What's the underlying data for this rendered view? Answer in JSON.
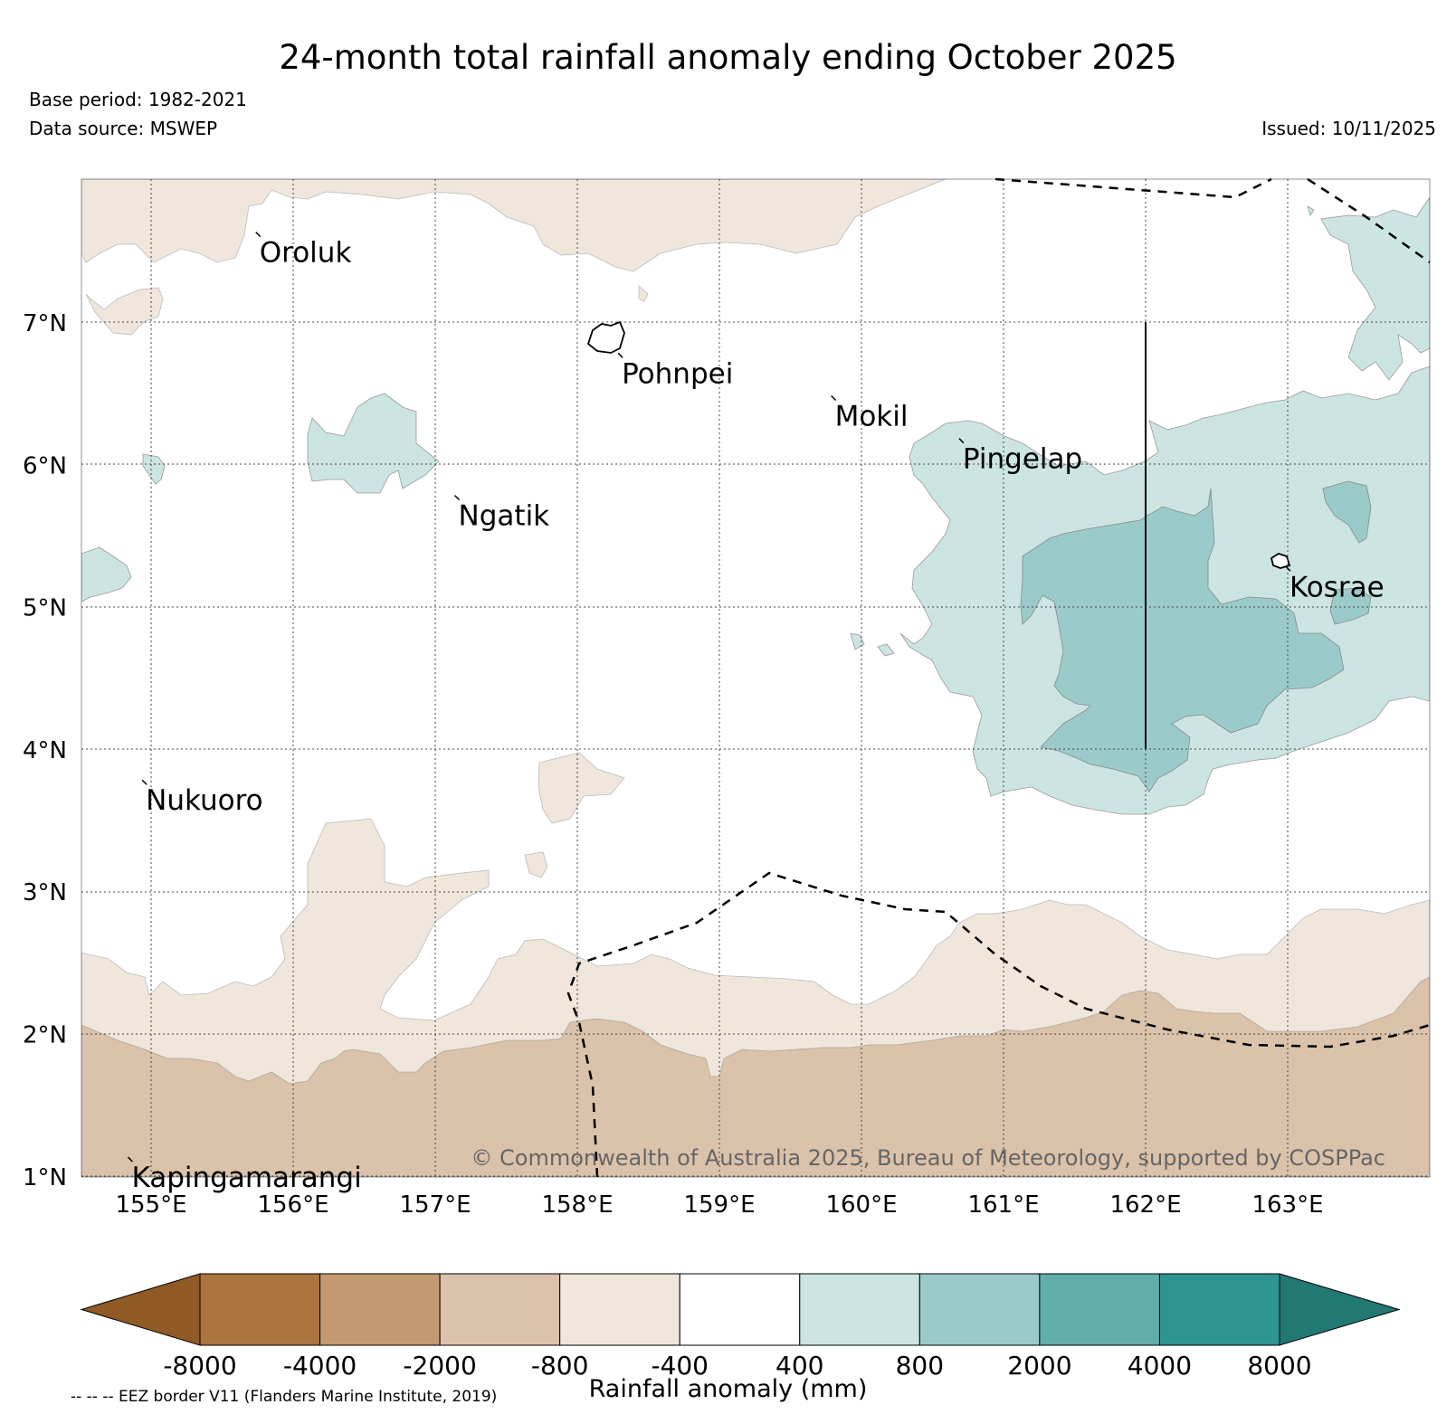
{
  "title": "24-month total rainfall anomaly ending October 2025",
  "base_period": "Base period: 1982-2021",
  "data_source": "Data source: MSWEP",
  "issued": "Issued: 10/11/2025",
  "copyright": "© Commonwealth of Australia 2025, Bureau of Meteorology, supported by COSPPac",
  "eez_note": "-- -- -- EEZ border V11 (Flanders Marine Institute, 2019)",
  "map": {
    "lon_range": [
      154.5,
      164.0
    ],
    "lat_range": [
      1.0,
      8.0
    ],
    "lat_ticks": [
      "7°N",
      "6°N",
      "5°N",
      "4°N",
      "3°N",
      "2°N",
      "1°N"
    ],
    "lon_ticks": [
      "155°E",
      "156°E",
      "157°E",
      "158°E",
      "159°E",
      "160°E",
      "161°E",
      "162°E",
      "163°E"
    ],
    "places": [
      {
        "name": "Oroluk",
        "lon": 155.75,
        "lat": 7.6
      },
      {
        "name": "Pohnpei",
        "lon": 158.3,
        "lat": 6.75
      },
      {
        "name": "Mokil",
        "lon": 159.8,
        "lat": 6.45
      },
      {
        "name": "Pingelap",
        "lon": 160.7,
        "lat": 6.15
      },
      {
        "name": "Ngatik",
        "lon": 157.15,
        "lat": 5.75
      },
      {
        "name": "Kosrae",
        "lon": 163.0,
        "lat": 5.25
      },
      {
        "name": "Nukuoro",
        "lon": 154.95,
        "lat": 3.75
      },
      {
        "name": "Kapingamarangi",
        "lon": 154.85,
        "lat": 1.1
      }
    ]
  },
  "colorbar": {
    "title": "Rainfall anomaly (mm)",
    "ticks": [
      "-8000",
      "-4000",
      "-2000",
      "-800",
      "-400",
      "400",
      "800",
      "2000",
      "4000",
      "8000"
    ],
    "colors": [
      "#8f5a24",
      "#ab753f",
      "#c39a71",
      "#dbc2aa",
      "#f0e6dc",
      "#ffffff",
      "#cce5e3",
      "#9acbca",
      "#62aeab",
      "#2e9490",
      "#227873"
    ]
  }
}
